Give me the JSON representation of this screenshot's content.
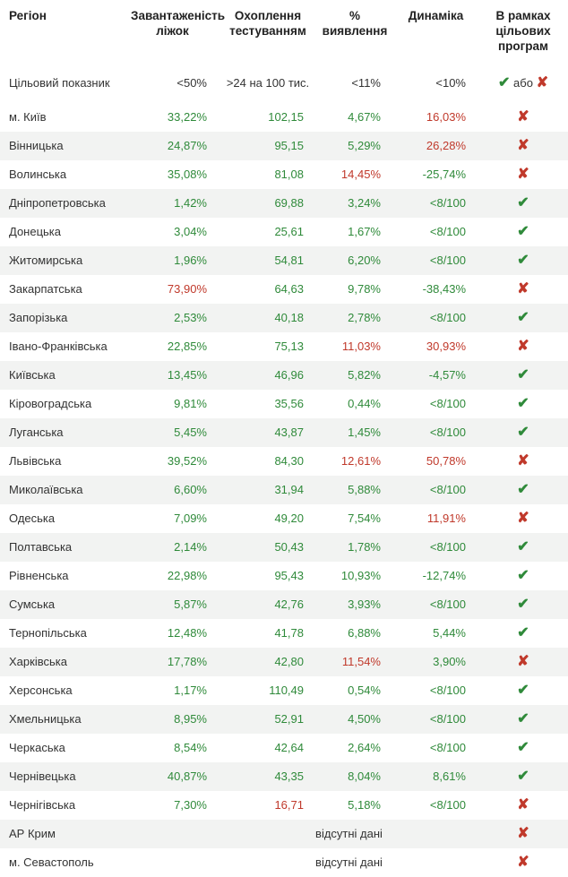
{
  "colors": {
    "green": "#2f8a3a",
    "red": "#c0392b",
    "text": "#333333",
    "stripe": "#f2f3f2",
    "background": "#ffffff"
  },
  "headers": {
    "region": "Регіон",
    "load": "Завантаженість ліжок",
    "testing": "Охоплення тестуванням",
    "percent": "% виявлення",
    "dynamics": "Динаміка",
    "programs": "В рамках цільових програм"
  },
  "target": {
    "label": "Цільовий показник",
    "load": "<50%",
    "testing": ">24 на 100 тис.",
    "percent": "<11%",
    "dynamics": "<10%",
    "programs_yes": "✔",
    "programs_sep": "або",
    "programs_no": "✘"
  },
  "note_absent": "відсутні дані",
  "glyphs": {
    "check": "✔",
    "cross": "✘"
  },
  "rows": [
    {
      "region": "м. Київ",
      "load": {
        "v": "33,22%",
        "c": "green"
      },
      "testing": {
        "v": "102,15",
        "c": "green"
      },
      "percent": {
        "v": "4,67%",
        "c": "green"
      },
      "dynamics": {
        "v": "16,03%",
        "c": "red"
      },
      "prog": "cross"
    },
    {
      "region": "Вінницька",
      "load": {
        "v": "24,87%",
        "c": "green"
      },
      "testing": {
        "v": "95,15",
        "c": "green"
      },
      "percent": {
        "v": "5,29%",
        "c": "green"
      },
      "dynamics": {
        "v": "26,28%",
        "c": "red"
      },
      "prog": "cross"
    },
    {
      "region": "Волинська",
      "load": {
        "v": "35,08%",
        "c": "green"
      },
      "testing": {
        "v": "81,08",
        "c": "green"
      },
      "percent": {
        "v": "14,45%",
        "c": "red"
      },
      "dynamics": {
        "v": "-25,74%",
        "c": "green"
      },
      "prog": "cross"
    },
    {
      "region": "Дніпропетровська",
      "load": {
        "v": "1,42%",
        "c": "green"
      },
      "testing": {
        "v": "69,88",
        "c": "green"
      },
      "percent": {
        "v": "3,24%",
        "c": "green"
      },
      "dynamics": {
        "v": "<8/100",
        "c": "green"
      },
      "prog": "check"
    },
    {
      "region": "Донецька",
      "load": {
        "v": "3,04%",
        "c": "green"
      },
      "testing": {
        "v": "25,61",
        "c": "green"
      },
      "percent": {
        "v": "1,67%",
        "c": "green"
      },
      "dynamics": {
        "v": "<8/100",
        "c": "green"
      },
      "prog": "check"
    },
    {
      "region": "Житомирська",
      "load": {
        "v": "1,96%",
        "c": "green"
      },
      "testing": {
        "v": "54,81",
        "c": "green"
      },
      "percent": {
        "v": "6,20%",
        "c": "green"
      },
      "dynamics": {
        "v": "<8/100",
        "c": "green"
      },
      "prog": "check"
    },
    {
      "region": "Закарпатська",
      "load": {
        "v": "73,90%",
        "c": "red"
      },
      "testing": {
        "v": "64,63",
        "c": "green"
      },
      "percent": {
        "v": "9,78%",
        "c": "green"
      },
      "dynamics": {
        "v": "-38,43%",
        "c": "green"
      },
      "prog": "cross"
    },
    {
      "region": "Запорізька",
      "load": {
        "v": "2,53%",
        "c": "green"
      },
      "testing": {
        "v": "40,18",
        "c": "green"
      },
      "percent": {
        "v": "2,78%",
        "c": "green"
      },
      "dynamics": {
        "v": "<8/100",
        "c": "green"
      },
      "prog": "check"
    },
    {
      "region": "Івано-Франківська",
      "load": {
        "v": "22,85%",
        "c": "green"
      },
      "testing": {
        "v": "75,13",
        "c": "green"
      },
      "percent": {
        "v": "11,03%",
        "c": "red"
      },
      "dynamics": {
        "v": "30,93%",
        "c": "red"
      },
      "prog": "cross"
    },
    {
      "region": "Київська",
      "load": {
        "v": "13,45%",
        "c": "green"
      },
      "testing": {
        "v": "46,96",
        "c": "green"
      },
      "percent": {
        "v": "5,82%",
        "c": "green"
      },
      "dynamics": {
        "v": "-4,57%",
        "c": "green"
      },
      "prog": "check"
    },
    {
      "region": "Кіровоградська",
      "load": {
        "v": "9,81%",
        "c": "green"
      },
      "testing": {
        "v": "35,56",
        "c": "green"
      },
      "percent": {
        "v": "0,44%",
        "c": "green"
      },
      "dynamics": {
        "v": "<8/100",
        "c": "green"
      },
      "prog": "check"
    },
    {
      "region": "Луганська",
      "load": {
        "v": "5,45%",
        "c": "green"
      },
      "testing": {
        "v": "43,87",
        "c": "green"
      },
      "percent": {
        "v": "1,45%",
        "c": "green"
      },
      "dynamics": {
        "v": "<8/100",
        "c": "green"
      },
      "prog": "check"
    },
    {
      "region": "Львівська",
      "load": {
        "v": "39,52%",
        "c": "green"
      },
      "testing": {
        "v": "84,30",
        "c": "green"
      },
      "percent": {
        "v": "12,61%",
        "c": "red"
      },
      "dynamics": {
        "v": "50,78%",
        "c": "red"
      },
      "prog": "cross"
    },
    {
      "region": "Миколаївська",
      "load": {
        "v": "6,60%",
        "c": "green"
      },
      "testing": {
        "v": "31,94",
        "c": "green"
      },
      "percent": {
        "v": "5,88%",
        "c": "green"
      },
      "dynamics": {
        "v": "<8/100",
        "c": "green"
      },
      "prog": "check"
    },
    {
      "region": "Одеська",
      "load": {
        "v": "7,09%",
        "c": "green"
      },
      "testing": {
        "v": "49,20",
        "c": "green"
      },
      "percent": {
        "v": "7,54%",
        "c": "green"
      },
      "dynamics": {
        "v": "11,91%",
        "c": "red"
      },
      "prog": "cross"
    },
    {
      "region": "Полтавська",
      "load": {
        "v": "2,14%",
        "c": "green"
      },
      "testing": {
        "v": "50,43",
        "c": "green"
      },
      "percent": {
        "v": "1,78%",
        "c": "green"
      },
      "dynamics": {
        "v": "<8/100",
        "c": "green"
      },
      "prog": "check"
    },
    {
      "region": "Рівненська",
      "load": {
        "v": "22,98%",
        "c": "green"
      },
      "testing": {
        "v": "95,43",
        "c": "green"
      },
      "percent": {
        "v": "10,93%",
        "c": "green"
      },
      "dynamics": {
        "v": "-12,74%",
        "c": "green"
      },
      "prog": "check"
    },
    {
      "region": "Сумська",
      "load": {
        "v": "5,87%",
        "c": "green"
      },
      "testing": {
        "v": "42,76",
        "c": "green"
      },
      "percent": {
        "v": "3,93%",
        "c": "green"
      },
      "dynamics": {
        "v": "<8/100",
        "c": "green"
      },
      "prog": "check"
    },
    {
      "region": "Тернопільська",
      "load": {
        "v": "12,48%",
        "c": "green"
      },
      "testing": {
        "v": "41,78",
        "c": "green"
      },
      "percent": {
        "v": "6,88%",
        "c": "green"
      },
      "dynamics": {
        "v": "5,44%",
        "c": "green"
      },
      "prog": "check"
    },
    {
      "region": "Харківська",
      "load": {
        "v": "17,78%",
        "c": "green"
      },
      "testing": {
        "v": "42,80",
        "c": "green"
      },
      "percent": {
        "v": "11,54%",
        "c": "red"
      },
      "dynamics": {
        "v": "3,90%",
        "c": "green"
      },
      "prog": "cross"
    },
    {
      "region": "Херсонська",
      "load": {
        "v": "1,17%",
        "c": "green"
      },
      "testing": {
        "v": "110,49",
        "c": "green"
      },
      "percent": {
        "v": "0,54%",
        "c": "green"
      },
      "dynamics": {
        "v": "<8/100",
        "c": "green"
      },
      "prog": "check"
    },
    {
      "region": "Хмельницька",
      "load": {
        "v": "8,95%",
        "c": "green"
      },
      "testing": {
        "v": "52,91",
        "c": "green"
      },
      "percent": {
        "v": "4,50%",
        "c": "green"
      },
      "dynamics": {
        "v": "<8/100",
        "c": "green"
      },
      "prog": "check"
    },
    {
      "region": "Черкаська",
      "load": {
        "v": "8,54%",
        "c": "green"
      },
      "testing": {
        "v": "42,64",
        "c": "green"
      },
      "percent": {
        "v": "2,64%",
        "c": "green"
      },
      "dynamics": {
        "v": "<8/100",
        "c": "green"
      },
      "prog": "check"
    },
    {
      "region": "Чернівецька",
      "load": {
        "v": "40,87%",
        "c": "green"
      },
      "testing": {
        "v": "43,35",
        "c": "green"
      },
      "percent": {
        "v": "8,04%",
        "c": "green"
      },
      "dynamics": {
        "v": "8,61%",
        "c": "green"
      },
      "prog": "check"
    },
    {
      "region": "Чернігівська",
      "load": {
        "v": "7,30%",
        "c": "green"
      },
      "testing": {
        "v": "16,71",
        "c": "red"
      },
      "percent": {
        "v": "5,18%",
        "c": "green"
      },
      "dynamics": {
        "v": "<8/100",
        "c": "green"
      },
      "prog": "cross"
    },
    {
      "region": "АР Крим",
      "absent": true,
      "prog": "cross"
    },
    {
      "region": "м. Севастополь",
      "absent": true,
      "prog": "cross"
    }
  ]
}
